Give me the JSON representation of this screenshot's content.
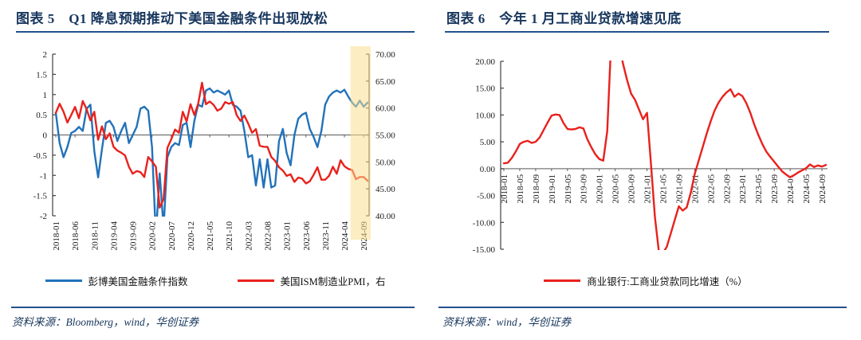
{
  "left_panel": {
    "title": "图表 5　Q1 降息预期推动下美国金融条件出现放松",
    "legend": [
      "彭博美国金融条件指数",
      "美国ISM制造业PMI，右"
    ],
    "source": "资料来源：Bloomberg，wind，华创证券"
  },
  "right_panel": {
    "title": "图表 6　今年 1 月工商业贷款增速见底",
    "legend": [
      "商业银行:工商业贷款同比增速（%）"
    ],
    "source": "资料来源：wind，华创证券"
  },
  "chart_data": [
    {
      "type": "line",
      "title": "Q1 降息预期推动下美国金融条件出现放松",
      "grid": false,
      "legend_position": "bottom",
      "categories": [
        "2018-01",
        "2018-02",
        "2018-03",
        "2018-04",
        "2018-05",
        "2018-06",
        "2018-07",
        "2018-08",
        "2018-09",
        "2018-10",
        "2018-11",
        "2018-12",
        "2019-01",
        "2019-02",
        "2019-03",
        "2019-04",
        "2019-05",
        "2019-06",
        "2019-07",
        "2019-08",
        "2019-09",
        "2019-10",
        "2019-11",
        "2019-12",
        "2020-01",
        "2020-02",
        "2020-03",
        "2020-04",
        "2020-05",
        "2020-06",
        "2020-07",
        "2020-08",
        "2020-09",
        "2020-10",
        "2020-11",
        "2020-12",
        "2021-01",
        "2021-02",
        "2021-03",
        "2021-04",
        "2021-05",
        "2021-06",
        "2021-07",
        "2021-08",
        "2021-09",
        "2021-10",
        "2021-11",
        "2021-12",
        "2022-01",
        "2022-02",
        "2022-03",
        "2022-04",
        "2022-05",
        "2022-06",
        "2022-07",
        "2022-08",
        "2022-09",
        "2022-10",
        "2022-11",
        "2022-12",
        "2023-01",
        "2023-02",
        "2023-03",
        "2023-04",
        "2023-05",
        "2023-06",
        "2023-07",
        "2023-08",
        "2023-09",
        "2023-10",
        "2023-11",
        "2023-12",
        "2024-01",
        "2024-02",
        "2024-03",
        "2024-04",
        "2024-05",
        "2024-06",
        "2024-07",
        "2024-08",
        "2024-09",
        "2024-10"
      ],
      "x_tick_labels": [
        "2018-01",
        "2018-06",
        "2018-11",
        "2019-04",
        "2019-09",
        "2020-02",
        "2020-07",
        "2020-12",
        "2021-05",
        "2021-10",
        "2022-03",
        "2022-08",
        "2023-01",
        "2023-06",
        "2023-11",
        "2024-04",
        "2024-09"
      ],
      "left_axis": {
        "min": -2,
        "max": 2,
        "ticks": [
          "2",
          "1.5",
          "1",
          "0.5",
          "0",
          "-0.5",
          "-1",
          "-1.5",
          "-2"
        ]
      },
      "right_axis": {
        "min": 40,
        "max": 70,
        "ticks": [
          "70.00",
          "65.00",
          "60.00",
          "55.00",
          "50.00",
          "45.00",
          "40.00"
        ]
      },
      "highlight_band": {
        "start": "2024-06",
        "end": "2024-10",
        "color": "#F9DE8F"
      },
      "series": [
        {
          "name": "彭博美国金融条件指数",
          "axis": "left",
          "color": "#2272BA",
          "values": [
            0.55,
            -0.2,
            -0.55,
            -0.3,
            0.05,
            0.1,
            0.2,
            0.1,
            0.65,
            0.75,
            -0.4,
            -1.05,
            -0.35,
            0.3,
            0.35,
            0.2,
            -0.15,
            0.1,
            0.3,
            -0.2,
            0.0,
            0.2,
            0.65,
            0.7,
            0.6,
            -0.3,
            -2.5,
            -0.95,
            -2.3,
            -0.55,
            -0.3,
            -0.2,
            -0.25,
            0.25,
            0.3,
            -0.3,
            0.35,
            0.75,
            0.7,
            1.1,
            1.15,
            1.05,
            1.1,
            1.05,
            1.0,
            1.1,
            0.75,
            0.7,
            0.6,
            0.1,
            -0.55,
            -0.5,
            -1.25,
            -0.6,
            -1.3,
            -0.6,
            -1.3,
            -1.25,
            -0.15,
            0.15,
            -0.45,
            -0.75,
            0.0,
            0.4,
            0.5,
            0.55,
            0.15,
            -0.05,
            -0.3,
            0.1,
            0.75,
            0.95,
            1.05,
            1.1,
            1.05,
            1.12,
            0.95,
            0.8,
            0.7,
            0.85,
            0.7,
            0.8
          ]
        },
        {
          "name": "美国ISM制造业PMI，右",
          "axis": "right",
          "color": "#E8211D",
          "values": [
            59.1,
            60.8,
            59.3,
            57.3,
            58.7,
            60.2,
            58.1,
            61.3,
            59.8,
            57.7,
            59.3,
            54.1,
            56.6,
            54.2,
            55.3,
            52.8,
            52.1,
            51.7,
            51.2,
            49.1,
            47.8,
            48.3,
            48.1,
            47.2,
            50.9,
            50.1,
            49.1,
            41.5,
            43.1,
            52.6,
            54.2,
            56.0,
            55.4,
            59.3,
            57.5,
            60.7,
            58.7,
            60.8,
            64.7,
            60.7,
            61.2,
            60.6,
            59.5,
            59.9,
            61.1,
            60.8,
            61.1,
            58.7,
            57.6,
            58.6,
            57.1,
            55.4,
            56.1,
            53.0,
            52.8,
            52.8,
            50.9,
            50.2,
            49.0,
            48.4,
            47.4,
            47.7,
            46.3,
            47.1,
            46.9,
            46.0,
            46.4,
            47.6,
            49.0,
            46.7,
            46.7,
            47.4,
            49.1,
            47.8,
            50.3,
            49.2,
            48.7,
            48.5,
            46.8,
            47.2,
            47.2,
            46.5
          ]
        }
      ]
    },
    {
      "type": "line",
      "title": "今年 1 月工商业贷款增速见底",
      "grid": false,
      "legend_position": "bottom",
      "categories": [
        "2018-01",
        "2018-02",
        "2018-03",
        "2018-04",
        "2018-05",
        "2018-06",
        "2018-07",
        "2018-08",
        "2018-09",
        "2018-10",
        "2018-11",
        "2018-12",
        "2019-01",
        "2019-02",
        "2019-03",
        "2019-04",
        "2019-05",
        "2019-06",
        "2019-07",
        "2019-08",
        "2019-09",
        "2019-10",
        "2019-11",
        "2019-12",
        "2020-01",
        "2020-02",
        "2020-03",
        "2020-04",
        "2020-05",
        "2020-06",
        "2020-07",
        "2020-08",
        "2020-09",
        "2020-10",
        "2020-11",
        "2020-12",
        "2021-01",
        "2021-02",
        "2021-03",
        "2021-04",
        "2021-05",
        "2021-06",
        "2021-07",
        "2021-08",
        "2021-09",
        "2021-10",
        "2021-11",
        "2021-12",
        "2022-01",
        "2022-02",
        "2022-03",
        "2022-04",
        "2022-05",
        "2022-06",
        "2022-07",
        "2022-08",
        "2022-09",
        "2022-10",
        "2022-11",
        "2022-12",
        "2023-01",
        "2023-02",
        "2023-03",
        "2023-04",
        "2023-05",
        "2023-06",
        "2023-07",
        "2023-08",
        "2023-09",
        "2023-10",
        "2023-11",
        "2023-12",
        "2024-01",
        "2024-02",
        "2024-03",
        "2024-04",
        "2024-05",
        "2024-06",
        "2024-07",
        "2024-08",
        "2024-09",
        "2024-10"
      ],
      "x_tick_labels": [
        "2018-01",
        "2018-05",
        "2018-09",
        "2019-01",
        "2019-05",
        "2019-09",
        "2020-01",
        "2020-05",
        "2020-09",
        "2021-01",
        "2021-05",
        "2021-09",
        "2022-01",
        "2022-05",
        "2022-09",
        "2023-01",
        "2023-05",
        "2023-09",
        "2024-01",
        "2024-05",
        "2024-09"
      ],
      "left_axis": {
        "min": -15,
        "max": 20,
        "ticks": [
          "20.00",
          "15.00",
          "10.00",
          "5.00",
          "0.00",
          "-5.00",
          "-10.00",
          "-15.00"
        ]
      },
      "series": [
        {
          "name": "商业银行:工商业贷款同比增速（%）",
          "axis": "left",
          "color": "#E8211D",
          "values": [
            1.0,
            1.1,
            2.0,
            3.2,
            4.6,
            5.0,
            5.2,
            4.8,
            5.0,
            5.8,
            7.2,
            8.6,
            9.9,
            10.1,
            10.0,
            8.5,
            7.4,
            7.3,
            7.4,
            7.7,
            7.5,
            5.5,
            4.0,
            2.7,
            1.8,
            1.5,
            7.0,
            24.0,
            26.0,
            23.0,
            19.5,
            16.5,
            14.0,
            12.8,
            11.0,
            9.2,
            10.4,
            1.0,
            -9.0,
            -15.5,
            -15.8,
            -14.5,
            -12.0,
            -9.5,
            -7.0,
            -7.8,
            -7.2,
            -4.5,
            -1.0,
            1.5,
            4.0,
            6.5,
            8.8,
            10.8,
            12.3,
            13.4,
            14.2,
            14.8,
            13.4,
            14.0,
            13.5,
            12.2,
            10.4,
            8.2,
            6.3,
            4.6,
            3.2,
            2.2,
            1.3,
            0.4,
            -0.5,
            -1.1,
            -1.6,
            -1.2,
            -0.7,
            -0.3,
            0.1,
            0.8,
            0.3,
            0.6,
            0.4,
            0.7
          ]
        }
      ]
    }
  ]
}
